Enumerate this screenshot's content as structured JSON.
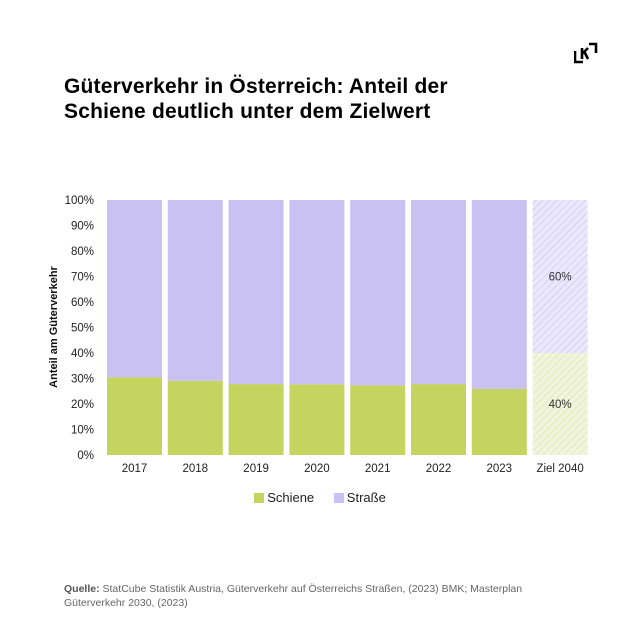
{
  "header": {
    "title_line1": "Güterverkehr in Österreich: Anteil der",
    "title_line2": "Schiene deutlich unter dem Zielwert",
    "logo_icon": "kontrast-logo-icon"
  },
  "legend": {
    "items": [
      {
        "label": "Schiene",
        "color": "#c3d45f"
      },
      {
        "label": "Straße",
        "color": "#cac1f3"
      }
    ]
  },
  "source": {
    "label": "Quelle:",
    "text": "StatCube Statistik Austria, Güterverkehr auf Österreichs Straßen, (2023) BMK; Masterplan Güterverkehr 2030, (2023)"
  },
  "chart_data": {
    "type": "bar",
    "stacked": true,
    "percent": true,
    "title": "Güterverkehr in Österreich: Anteil der Schiene deutlich unter dem Zielwert",
    "xlabel": "",
    "ylabel": "Anteil am Güterverkehr",
    "ylim": [
      0,
      100
    ],
    "yticks": [
      "0%",
      "10%",
      "20%",
      "30%",
      "40%",
      "50%",
      "60%",
      "70%",
      "80%",
      "90%",
      "100%"
    ],
    "categories": [
      "2017",
      "2018",
      "2019",
      "2020",
      "2021",
      "2022",
      "2023",
      "Ziel 2040"
    ],
    "series": [
      {
        "name": "Schiene",
        "color": "#c3d45f",
        "target_color": "#e9f0c8",
        "values": [
          30.5,
          29.1,
          27.8,
          27.7,
          27.3,
          27.8,
          25.9,
          40
        ]
      },
      {
        "name": "Straße",
        "color": "#cac1f3",
        "target_color": "#e6e1fb",
        "values": [
          69.5,
          70.9,
          72.2,
          72.3,
          72.7,
          72.2,
          74.1,
          60
        ]
      }
    ],
    "hatched_categories": [
      "Ziel 2040"
    ],
    "annotations": [
      {
        "category": "Ziel 2040",
        "series": "Straße",
        "text": "60%"
      },
      {
        "category": "Ziel 2040",
        "series": "Schiene",
        "text": "40%"
      }
    ],
    "grid": false,
    "legend_position": "bottom-center"
  }
}
